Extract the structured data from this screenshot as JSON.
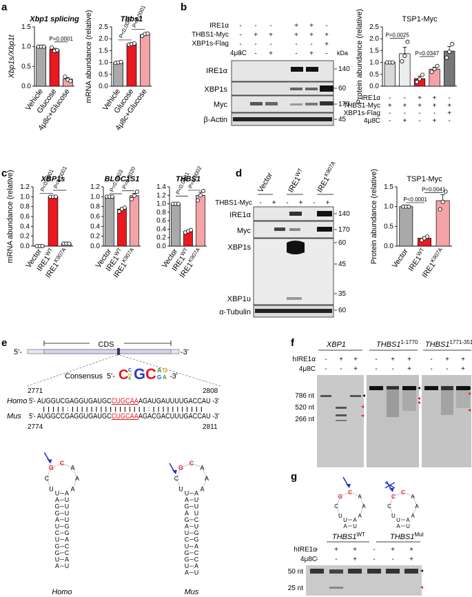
{
  "panels": {
    "a": "a",
    "b": "b",
    "c": "c",
    "d": "d",
    "e": "e",
    "f": "f",
    "g": "g"
  },
  "charts": {
    "a1": {
      "title": "Xbp1 splicing",
      "ylabel": "Xbp1s/Xbp1t",
      "ticks": [
        "0.0",
        "0.5",
        "1.0",
        "1.5"
      ],
      "ylim": [
        0,
        1.5
      ],
      "categories": [
        "Vehicle",
        "Glucose",
        "4μ8c+Glucose"
      ],
      "values": [
        1.0,
        0.93,
        0.18
      ],
      "points": [
        [
          1.0,
          1.0,
          1.0
        ],
        [
          0.98,
          0.89,
          0.91
        ],
        [
          0.24,
          0.16,
          0.13
        ]
      ],
      "colors": [
        "#a9a9a9",
        "#e8191f",
        "#f4a3a6"
      ],
      "p": [
        "P=0.0001"
      ]
    },
    "a2": {
      "title": "Thbs1",
      "ylabel": "mRNA abundance (relative)",
      "ticks": [
        "0.0",
        "0.5",
        "1.0",
        "1.5",
        "2.0",
        "2.5"
      ],
      "ylim": [
        0,
        2.5
      ],
      "categories": [
        "Vehicle",
        "Glucose",
        "4μ8c+Glucose"
      ],
      "values": [
        1.0,
        1.78,
        2.18
      ],
      "points": [
        [
          0.98,
          1.0,
          1.02
        ],
        [
          1.75,
          1.78,
          1.8
        ],
        [
          2.12,
          2.2,
          2.22
        ]
      ],
      "colors": [
        "#a9a9a9",
        "#e8191f",
        "#f4a3a6"
      ],
      "p": [
        "P<0.0001",
        "P<0.0001"
      ]
    },
    "b": {
      "title": "TSP1-Myc",
      "ylabel": "Protein abundance (relative)",
      "ticks": [
        "0.0",
        "0.5",
        "1.0",
        "1.5",
        "2.0",
        "2.5"
      ],
      "ylim": [
        0,
        2.5
      ],
      "values": [
        1.0,
        1.37,
        0.32,
        0.72,
        1.48
      ],
      "points": [
        [
          1.0,
          1.0,
          1.0
        ],
        [
          1.05,
          1.28,
          1.87
        ],
        [
          0.18,
          0.3,
          0.48
        ],
        [
          0.6,
          0.72,
          0.85
        ],
        [
          1.2,
          1.45,
          1.78
        ]
      ],
      "colors": [
        "#d9d9d9",
        "#ececec",
        "#e8191f",
        "#f4a3a6",
        "#777777"
      ],
      "p": [
        "P=0.0025",
        "P=0.0347"
      ],
      "row_labels": [
        "IRE1α",
        "THBS1-Myc",
        "XBP1s-Flag",
        "4μ8C"
      ],
      "rows": [
        [
          "-",
          "-",
          "+",
          "+",
          "-"
        ],
        [
          "+",
          "+",
          "+",
          "+",
          "+"
        ],
        [
          "-",
          "-",
          "-",
          "-",
          "+"
        ],
        [
          "-",
          "+",
          "-",
          "+",
          "-"
        ]
      ]
    },
    "c1": {
      "title": "XBP1s",
      "ylabel": "mRNA abundance (relative)",
      "ticks": [
        "0.0",
        "0.2",
        "0.4",
        "0.6",
        "0.8",
        "1.0",
        "1.2"
      ],
      "ylim": [
        0,
        1.2
      ],
      "categories": [
        "Vector",
        "IRE1WT",
        "IRE1K907A"
      ],
      "values": [
        0.0,
        1.0,
        0.05
      ],
      "points": [
        [
          0,
          0,
          0
        ],
        [
          1,
          1,
          1
        ],
        [
          0.05,
          0.05,
          0.05
        ]
      ],
      "colors": [
        "#a9a9a9",
        "#e8191f",
        "#f4a3a6"
      ],
      "p": [
        "P<0.0001",
        "P<0.0001"
      ]
    },
    "c2": {
      "title": "BLOC1S1",
      "ylabel": "",
      "ticks": [
        "0.0",
        "0.2",
        "0.4",
        "0.6",
        "0.8",
        "1.0",
        "1.2"
      ],
      "ylim": [
        0,
        1.2
      ],
      "categories": [
        "Vector",
        "IRE1WT",
        "IRE1K907A"
      ],
      "values": [
        1.0,
        0.75,
        1.02
      ],
      "points": [
        [
          1,
          1,
          1
        ],
        [
          0.7,
          0.75,
          0.78
        ],
        [
          0.95,
          1.02,
          1.1
        ]
      ],
      "colors": [
        "#a9a9a9",
        "#e8191f",
        "#f4a3a6"
      ],
      "p": [
        "P=0.0003",
        "P=0.0020"
      ]
    },
    "c3": {
      "title": "THBS1",
      "ylabel": "",
      "ticks": [
        "0.0",
        "0.2",
        "0.4",
        "0.6",
        "0.8",
        "1.0",
        "1.2",
        "1.4"
      ],
      "ylim": [
        0,
        1.4
      ],
      "categories": [
        "Vector",
        "IRE1WT",
        "IRE1K907A"
      ],
      "values": [
        1.0,
        0.35,
        1.2
      ],
      "points": [
        [
          1,
          1,
          1
        ],
        [
          0.32,
          0.35,
          0.38
        ],
        [
          1.08,
          1.2,
          1.3
        ]
      ],
      "colors": [
        "#a9a9a9",
        "#e8191f",
        "#f4a3a6"
      ],
      "p": [
        "P<0.0001",
        "P=0.0002"
      ]
    },
    "d": {
      "title": "TSP1-Myc",
      "ylabel": "Protein abundance (relative)",
      "ticks": [
        "0.0",
        "0.5",
        "1.0",
        "1.5"
      ],
      "ylim": [
        0,
        1.5
      ],
      "categories": [
        "Vector",
        "IRE1WT",
        "IRE1K907A"
      ],
      "values": [
        1.0,
        0.2,
        1.15
      ],
      "points": [
        [
          1,
          1,
          1
        ],
        [
          0.15,
          0.2,
          0.24
        ],
        [
          0.93,
          1.12,
          1.38
        ]
      ],
      "colors": [
        "#a9a9a9",
        "#e8191f",
        "#f4a3a6"
      ],
      "p": [
        "P<0.0001",
        "P=0.0041"
      ]
    }
  },
  "blots": {
    "b": {
      "row_labels": [
        "IRE1α",
        "THBS1-Myc",
        "XBP1s-Flag",
        "4μ8C"
      ],
      "rows": [
        [
          "-",
          "-",
          "-",
          "+",
          "+",
          "-"
        ],
        [
          "-",
          "+",
          "+",
          "+",
          "+",
          "+"
        ],
        [
          "-",
          "-",
          "-",
          "-",
          "-",
          "+"
        ],
        [
          "-",
          "-",
          "+",
          "-",
          "+",
          "-"
        ]
      ],
      "bands": [
        "IRE1α",
        "XBP1s",
        "Myc",
        "β-Actin"
      ],
      "kda_label": "kDa",
      "kda": [
        "140",
        "60",
        "170",
        "45"
      ]
    },
    "d": {
      "lanes": [
        "Vector",
        "IRE1",
        "IRE1"
      ],
      "lane_sup": [
        "",
        "WT",
        "K907A"
      ],
      "row_label": "THBS1-Myc",
      "row": [
        "-",
        "+",
        "-",
        "+",
        "-",
        "+"
      ],
      "bands": [
        "IRE1α",
        "Myc",
        "XBP1s",
        "XBP1u",
        "α-Tubulin"
      ],
      "kda": [
        "140",
        "170",
        "60",
        "45",
        "35",
        "60"
      ]
    },
    "f": {
      "groups": [
        "XBP1",
        "THBS1",
        "THBS1"
      ],
      "group_sup": [
        "",
        "1-1770",
        "1771-3510"
      ],
      "row_labels": [
        "hIRE1α",
        "4μ8C"
      ],
      "row1": [
        "-",
        "+",
        "+"
      ],
      "row2": [
        "-",
        "-",
        "+"
      ],
      "markers": [
        "786 nt",
        "520 nt",
        "266 nt"
      ]
    },
    "g": {
      "labels": [
        "THBS1",
        "THBS1"
      ],
      "sups": [
        "WT",
        "Mut"
      ],
      "row_labels": [
        "hIRE1α",
        "4μ8C"
      ],
      "row1": [
        "-",
        "+",
        "+"
      ],
      "row2": [
        "-",
        "-",
        "+"
      ],
      "markers": [
        "50 nt",
        "25 nt"
      ]
    }
  },
  "panel_e": {
    "cds": "CDS",
    "five": "5'-",
    "three": "-3'",
    "consensus_label": "Consensus",
    "consensus_5": "5'-",
    "consensus_3": "-3'",
    "pos": [
      "2771",
      "2808",
      "2774",
      "2811"
    ],
    "species": [
      "Homo",
      "Mus"
    ],
    "homo_seq": {
      "pre": "5'- AUGGUCGAGGUGAUGC",
      "red": "CUGCAA",
      "post": "AGAUGAUUUUGACCAU -3'"
    },
    "mus_seq": {
      "pre": "5'- AUGGCCGAGGUGAUGC",
      "red": "CUGCAA",
      "post": "AGACGACUUUGACCAU -3'"
    },
    "bars": "| | | | | : | | | | | | | | | | | | | | | | : | | | | | | | | | | |",
    "hp_labels": [
      "Homo",
      "Mus"
    ]
  }
}
